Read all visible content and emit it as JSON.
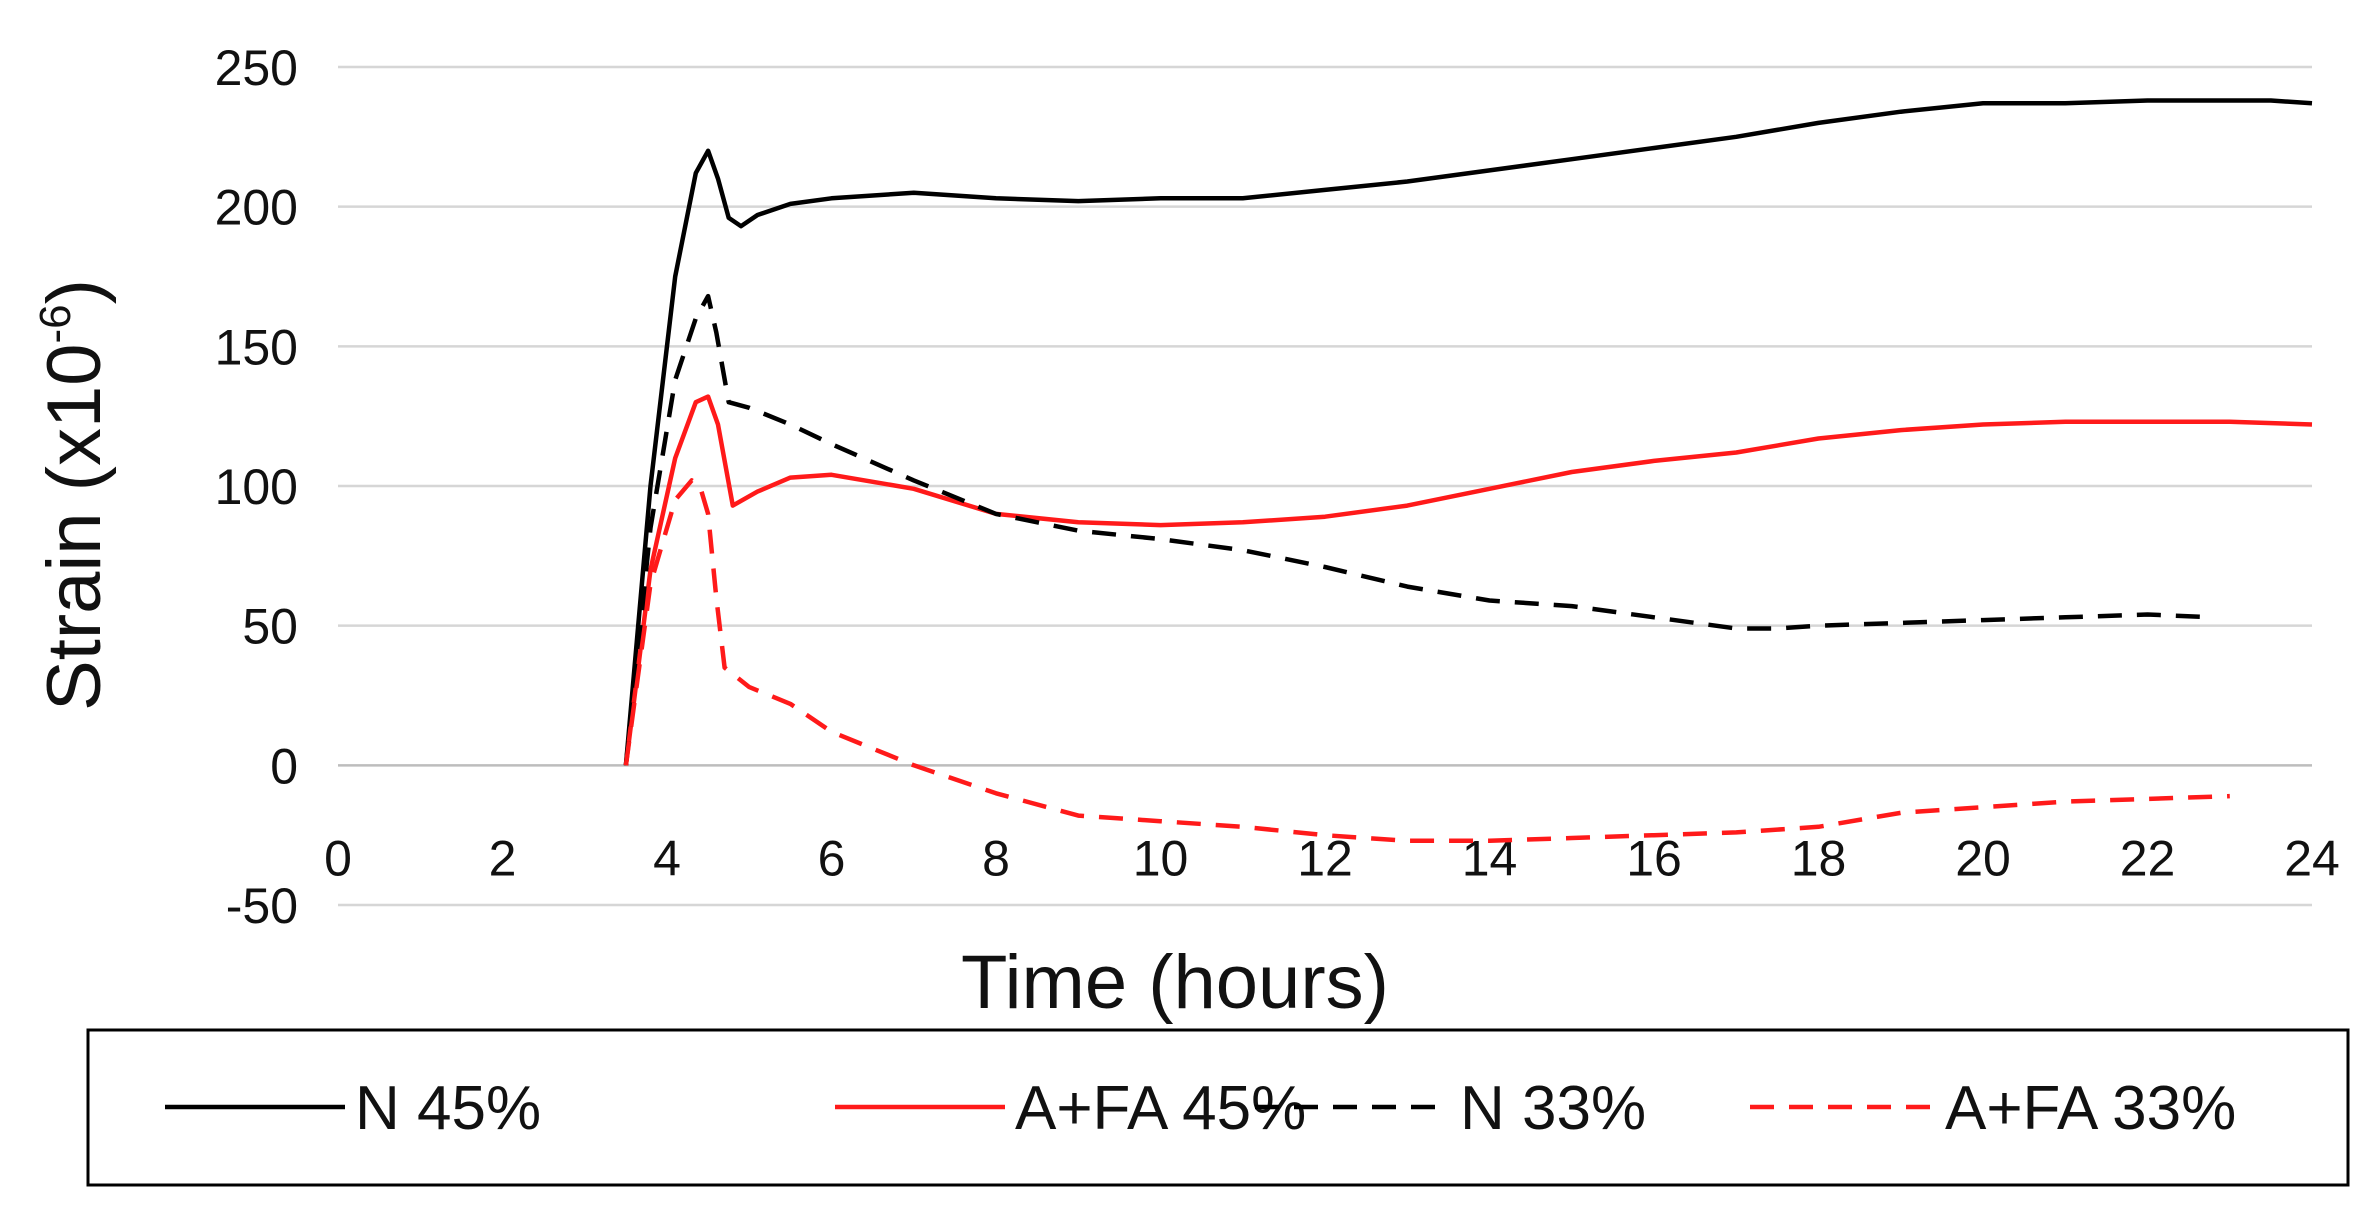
{
  "chart_data": {
    "type": "line",
    "title": "",
    "xlabel": "Time (hours)",
    "ylabel_main": "Strain (x10",
    "ylabel_sup": "-6",
    "ylabel_close": ")",
    "xlim": [
      0,
      24
    ],
    "ylim": [
      -50,
      250
    ],
    "xticks": [
      "0",
      "2",
      "4",
      "6",
      "8",
      "10",
      "12",
      "14",
      "16",
      "18",
      "20",
      "22",
      "24"
    ],
    "yticks": [
      "-50",
      "0",
      "50",
      "100",
      "150",
      "200",
      "250"
    ],
    "grid": true,
    "legend_position": "bottom",
    "series": [
      {
        "name": "N 45%",
        "color": "#000000",
        "dash": "solid",
        "x": [
          3.5,
          3.8,
          4.1,
          4.35,
          4.5,
          4.62,
          4.75,
          4.9,
          5.1,
          5.5,
          6,
          7,
          8,
          9,
          10,
          11,
          12,
          13,
          14,
          15,
          16,
          17,
          18,
          19,
          20,
          21,
          22,
          23,
          23.5,
          24
        ],
        "y": [
          0,
          100,
          175,
          212,
          220,
          210,
          196,
          193,
          197,
          201,
          203,
          205,
          203,
          202,
          203,
          203,
          206,
          209,
          213,
          217,
          221,
          225,
          230,
          234,
          237,
          237,
          238,
          238,
          238,
          237
        ]
      },
      {
        "name": "A+FA 45%",
        "color": "#ff1a1a",
        "dash": "solid",
        "x": [
          3.5,
          3.8,
          4.1,
          4.35,
          4.5,
          4.62,
          4.8,
          5.1,
          5.5,
          6,
          7,
          8,
          9,
          10,
          11,
          12,
          13,
          14,
          15,
          16,
          17,
          18,
          19,
          20,
          21,
          22,
          23,
          24
        ],
        "y": [
          0,
          70,
          110,
          130,
          132,
          122,
          93,
          98,
          103,
          104,
          99,
          90,
          87,
          86,
          87,
          89,
          93,
          99,
          105,
          109,
          112,
          117,
          120,
          122,
          123,
          123,
          123,
          122
        ]
      },
      {
        "name": "N 33%",
        "color": "#000000",
        "dash": "dashed",
        "x": [
          3.5,
          3.8,
          4.1,
          4.35,
          4.5,
          4.6,
          4.75,
          5,
          5.5,
          6,
          7,
          8,
          9,
          10,
          11,
          12,
          13,
          14,
          15,
          16,
          17,
          17.5,
          18,
          19,
          20,
          21,
          22,
          22.8
        ],
        "y": [
          0,
          85,
          138,
          160,
          168,
          155,
          130,
          128,
          122,
          115,
          102,
          90,
          84,
          81,
          77,
          71,
          64,
          59,
          57,
          53,
          49,
          49,
          50,
          51,
          52,
          53,
          54,
          53
        ]
      },
      {
        "name": "A+FA 33%",
        "color": "#ff1a1a",
        "dash": "dashed",
        "x": [
          3.5,
          3.8,
          4.1,
          4.3,
          4.4,
          4.5,
          4.6,
          4.7,
          5,
          5.5,
          6,
          7,
          8,
          9,
          10,
          11,
          12,
          13,
          14,
          15,
          16,
          17,
          18,
          19,
          20,
          21,
          22,
          23
        ],
        "y": [
          0,
          65,
          95,
          102,
          100,
          90,
          60,
          35,
          28,
          22,
          12,
          0,
          -10,
          -18,
          -20,
          -22,
          -25,
          -27,
          -27,
          -26,
          -25,
          -24,
          -22,
          -17,
          -15,
          -13,
          -12,
          -11
        ]
      }
    ]
  }
}
